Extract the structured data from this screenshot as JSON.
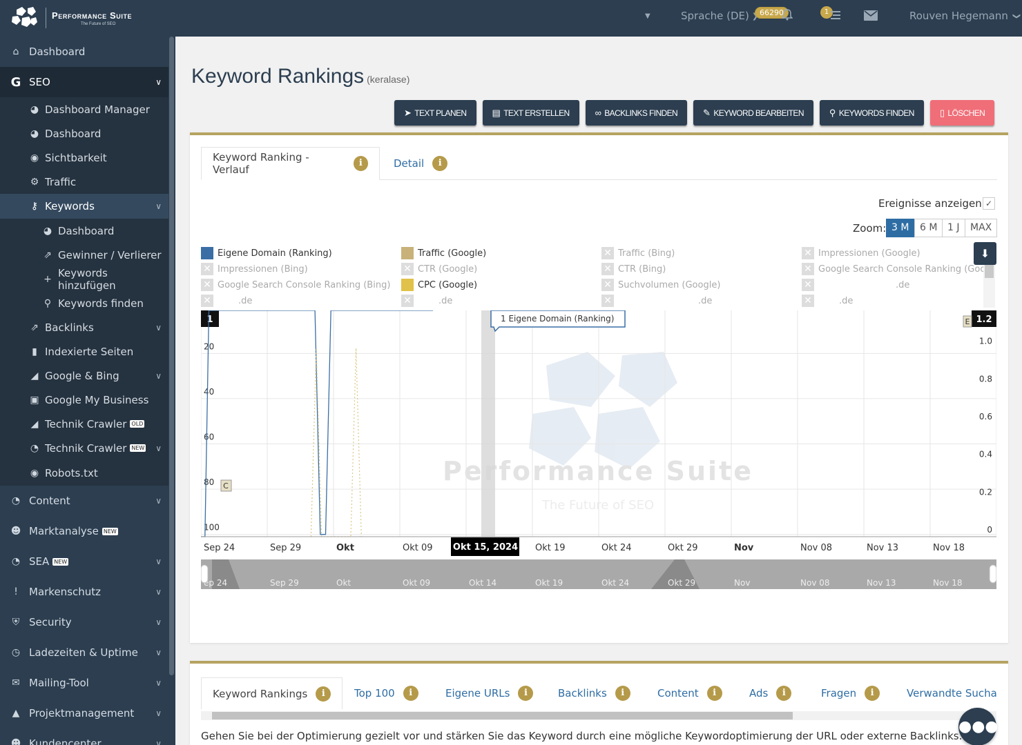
{
  "brand": {
    "name": "Performance Suite",
    "tagline": "The Future of SEO"
  },
  "topbar": {
    "language": "Sprache (DE)",
    "badge_count": "66290",
    "notif_count": "1",
    "user": "Rouven Hegemann"
  },
  "sidebar": {
    "dashboard": "Dashboard",
    "seo": "SEO",
    "seo_items": [
      "Dashboard Manager",
      "Dashboard",
      "Sichtbarkeit",
      "Traffic"
    ],
    "keywords": "Keywords",
    "keyword_items": [
      "Dashboard",
      "Gewinner / Verlierer",
      "Keywords hinzufügen",
      "Keywords finden"
    ],
    "more_items": [
      "Backlinks",
      "Indexierte Seiten",
      "Google & Bing",
      "Google My Business",
      "Technik Crawler",
      "Technik Crawler",
      "Robots.txt"
    ],
    "tag_old": "OLD",
    "tag_new": "NEW",
    "sections": [
      "Content",
      "Marktanalyse",
      "SEA",
      "Markenschutz",
      "Security",
      "Ladezeiten & Uptime",
      "Mailing-Tool",
      "Projektmanagement",
      "Kundencenter"
    ]
  },
  "page": {
    "title": "Keyword Rankings",
    "subtitle": "(keralase)"
  },
  "actions": [
    "TEXT PLANEN",
    "TEXT ERSTELLEN",
    "BACKLINKS FINDEN",
    "KEYWORD BEARBEITEN",
    "KEYWORDS FINDEN",
    "LÖSCHEN"
  ],
  "chart_card": {
    "tabs": [
      "Keyword Ranking - Verlauf",
      "Detail"
    ],
    "info_glyph": "i",
    "events_label": "Ereignisse anzeigen",
    "events_checked": "✓",
    "zoom_label": "Zoom:",
    "zoom_options": [
      "3 M",
      "6 M",
      "1 J",
      "MAX"
    ],
    "zoom_selected": "3 M"
  },
  "legend": [
    {
      "label": "Eigene Domain (Ranking)",
      "color": "#3a6ea5",
      "enabled": true
    },
    {
      "label": "Traffic (Google)",
      "color": "#c8b27a",
      "enabled": true
    },
    {
      "label": "Traffic (Bing)",
      "enabled": false
    },
    {
      "label": "Impressionen (Google)",
      "enabled": false
    },
    {
      "label": "Impressionen (Bing)",
      "enabled": false
    },
    {
      "label": "CTR (Google)",
      "enabled": false
    },
    {
      "label": "CTR (Bing)",
      "enabled": false
    },
    {
      "label": "Google Search Console Ranking (Google)",
      "enabled": false
    },
    {
      "label": "Google Search Console Ranking (Bing)",
      "enabled": false
    },
    {
      "label": "CPC (Google)",
      "color": "#e0c24a",
      "enabled": true
    },
    {
      "label": "Suchvolumen (Google)",
      "enabled": false
    },
    {
      "label": ".de",
      "enabled": false
    },
    {
      "label": ".de",
      "enabled": false
    },
    {
      "label": ".de",
      "enabled": false
    },
    {
      "label": ".de",
      "enabled": false
    },
    {
      "label": ".de",
      "enabled": false
    }
  ],
  "chart_data": {
    "type": "line",
    "x_labels": [
      "Sep 24",
      "Sep 29",
      "Okt",
      "Okt 09",
      "Okt 15, 2024",
      "Okt 19",
      "Okt 24",
      "Okt 29",
      "Nov",
      "Nov 08",
      "Nov 13",
      "Nov 18"
    ],
    "bold_labels": [
      "Okt",
      "Nov"
    ],
    "navigator_labels": [
      "ep 24",
      "Sep 29",
      "Okt",
      "Okt 09",
      "Okt 14",
      "Okt 19",
      "Okt 24",
      "Okt 29",
      "Nov",
      "Nov 08",
      "Nov 13",
      "Nov 18"
    ],
    "y_left": {
      "ticks": [
        "1",
        "20",
        "40",
        "60",
        "80",
        "100"
      ],
      "reversed": true,
      "range": [
        1,
        101
      ]
    },
    "y_right": {
      "ticks": [
        "1.2",
        "1.0",
        "0.8",
        "0.6",
        "0.4",
        "0.2",
        "0"
      ],
      "range": [
        0,
        1.2
      ]
    },
    "series": [
      {
        "name": "Eigene Domain (Ranking)",
        "axis": "left",
        "points": [
          [
            0,
            101
          ],
          [
            0.3,
            101
          ],
          [
            0.6,
            1
          ],
          [
            8.6,
            1
          ],
          [
            9.0,
            100
          ],
          [
            9.4,
            100
          ],
          [
            9.8,
            1
          ],
          [
            17.5,
            1
          ]
        ]
      },
      {
        "name": "Traffic (Google)",
        "axis": "right",
        "points": [
          [
            8.3,
            0
          ],
          [
            8.7,
            1
          ],
          [
            9.1,
            0
          ],
          [
            11.3,
            0
          ],
          [
            11.7,
            1
          ],
          [
            12.1,
            0
          ]
        ]
      }
    ],
    "event_markers": [
      "C",
      "E"
    ],
    "tooltip": "1 Eigene Domain (Ranking)",
    "crosshair_date": "Okt 15, 2024",
    "watermark": "Performance Suite",
    "watermark_sub": "The Future of SEO"
  },
  "bottom_card": {
    "tabs": [
      "Keyword Rankings",
      "Top 100",
      "Eigene URLs",
      "Backlinks",
      "Content",
      "Ads",
      "Fragen",
      "Verwandte Suchan"
    ],
    "info_glyph": "i",
    "hint": "Gehen Sie bei der Optimierung gezielt vor und stärken Sie das Keyword durch eine mögliche Keywordoptimierung der URL oder externe Backlinks."
  }
}
